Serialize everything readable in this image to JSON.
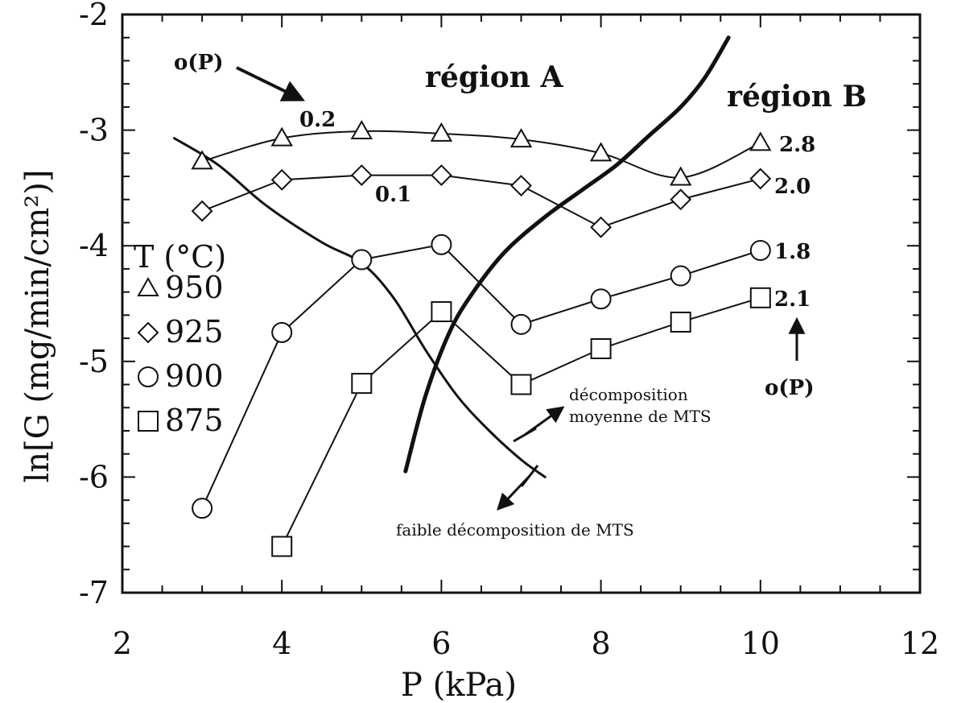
{
  "chart_data": {
    "type": "line",
    "xlabel": "P (kPa)",
    "ylabel": "ln[G (mg/min/cm²)]",
    "xlim": [
      2,
      12
    ],
    "ylim": [
      -7,
      -2
    ],
    "xticks": [
      "2",
      "4",
      "6",
      "8",
      "10",
      "12"
    ],
    "yticks": [
      "-2",
      "-3",
      "-4",
      "-5",
      "-6",
      "-7"
    ],
    "legend": {
      "title": "T (°C)",
      "position": "left",
      "entries": [
        {
          "label": "950",
          "marker": "triangle"
        },
        {
          "label": "925",
          "marker": "diamond"
        },
        {
          "label": "900",
          "marker": "circle"
        },
        {
          "label": "875",
          "marker": "square"
        }
      ]
    },
    "series": [
      {
        "name": "950",
        "marker": "triangle",
        "smooth": true,
        "x": [
          3,
          4,
          5,
          6,
          7,
          8,
          9,
          10
        ],
        "y": [
          -3.27,
          -3.07,
          -3.01,
          -3.03,
          -3.08,
          -3.2,
          -3.41,
          -3.11
        ]
      },
      {
        "name": "925",
        "marker": "diamond",
        "smooth": false,
        "x": [
          3,
          4,
          5,
          6,
          7,
          8,
          9,
          10
        ],
        "y": [
          -3.7,
          -3.43,
          -3.39,
          -3.39,
          -3.48,
          -3.84,
          -3.6,
          -3.42
        ]
      },
      {
        "name": "900",
        "marker": "circle",
        "smooth": false,
        "x": [
          3,
          4,
          5,
          6,
          7,
          8,
          9,
          10
        ],
        "y": [
          -6.27,
          -4.75,
          -4.12,
          -3.99,
          -4.68,
          -4.46,
          -4.26,
          -4.04
        ]
      },
      {
        "name": "875",
        "marker": "square",
        "smooth": false,
        "x": [
          4,
          5,
          6,
          7,
          8,
          9,
          10
        ],
        "y": [
          -6.6,
          -5.19,
          -4.57,
          -5.2,
          -4.89,
          -4.66,
          -4.45
        ]
      }
    ],
    "curves": [
      {
        "id": "boundary-A-B",
        "style": "thick",
        "x": [
          5.55,
          5.8,
          6.1,
          6.4,
          6.8,
          7.3,
          7.8,
          8.2,
          8.6,
          9.0,
          9.3,
          9.6
        ],
        "y": [
          -5.95,
          -5.3,
          -4.75,
          -4.4,
          -4.05,
          -3.75,
          -3.5,
          -3.3,
          -3.05,
          -2.8,
          -2.55,
          -2.2
        ]
      },
      {
        "id": "decomposition-limit",
        "style": "medium",
        "x": [
          2.65,
          3.2,
          3.8,
          4.5,
          5.0,
          5.4,
          5.8,
          6.2,
          6.6,
          7.0,
          7.3
        ],
        "y": [
          -3.07,
          -3.3,
          -3.65,
          -3.97,
          -4.15,
          -4.45,
          -4.9,
          -5.3,
          -5.6,
          -5.85,
          -6.0
        ]
      }
    ],
    "annotations": {
      "region_a": "région A",
      "region_b": "région B",
      "o_p_top": "o(P)",
      "o_p_right": "o(P)",
      "val_02": "0.2",
      "val_01": "0.1",
      "val_28": "2.8",
      "val_20": "2.0",
      "val_18": "1.8",
      "val_21": "2.1",
      "decomp_moyenne_1": "décomposition",
      "decomp_moyenne_2": "moyenne de MTS",
      "decomp_faible": "faible décomposition de MTS"
    }
  }
}
